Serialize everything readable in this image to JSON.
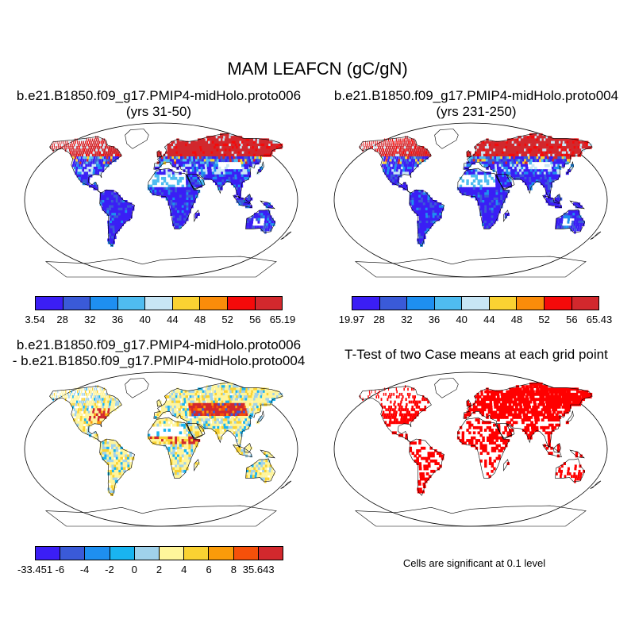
{
  "main_title": "MAM LEAFCN (gC/gN)",
  "panels": [
    {
      "title_line1": "b.e21.B1850.f09_g17.PMIP4-midHolo.proto006",
      "title_line2": "(yrs 31-50)"
    },
    {
      "title_line1": "b.e21.B1850.f09_g17.PMIP4-midHolo.proto004",
      "title_line2": "(yrs 231-250)"
    },
    {
      "title_line1": "b.e21.B1850.f09_g17.PMIP4-midHolo.proto006",
      "title_line2": "- b.e21.B1850.f09_g17.PMIP4-midHolo.proto004"
    },
    {
      "title_line1": "T-Test of two Case means at each grid point"
    }
  ],
  "colorbars": {
    "case": {
      "colors": [
        "#3b1ef5",
        "#3a5ad8",
        "#1e8ff0",
        "#4fbcf0",
        "#c8e6f5",
        "#fad232",
        "#fa8c0a",
        "#f50a0a",
        "#d2282d"
      ],
      "left_labels": [
        "3.54",
        "28",
        "32",
        "36",
        "40",
        "44",
        "48",
        "52",
        "56",
        "65.19"
      ],
      "right_labels": [
        "19.97",
        "28",
        "32",
        "36",
        "40",
        "44",
        "48",
        "52",
        "56",
        "65.43"
      ]
    },
    "diff": {
      "colors": [
        "#3b1ef5",
        "#3a5ad8",
        "#1e8ff0",
        "#19b4f0",
        "#a0d2eb",
        "#fff59b",
        "#fad232",
        "#fa9b0a",
        "#f5500a",
        "#d2282d"
      ],
      "labels": [
        "-33.451",
        "-6",
        "-4",
        "-2",
        "0",
        "2",
        "4",
        "6",
        "8",
        "35.643"
      ]
    }
  },
  "significance_note": "Cells are significant at 0.1 level"
}
